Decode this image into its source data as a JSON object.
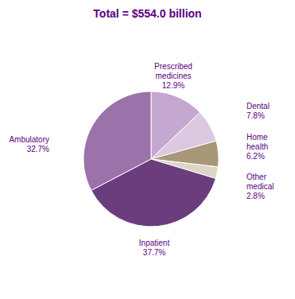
{
  "chart_data": {
    "type": "pie",
    "title": "Total = $554.0 billion",
    "categories": [
      "Prescribed\nmedicines",
      "Dental",
      "Home\nhealth",
      "Other\nmedical",
      "Inpatient",
      "Ambulatory"
    ],
    "values": [
      12.9,
      7.8,
      6.2,
      2.8,
      37.7,
      32.7
    ],
    "value_labels": [
      "12.9%",
      "7.8%",
      "6.2%",
      "2.8%",
      "37.7%",
      "32.7%"
    ],
    "data_labels": true,
    "colors": [
      "#c4a8d0",
      "#dcc8e0",
      "#a89878",
      "#ddd5c8",
      "#6b3d7d",
      "#9b72aa"
    ],
    "title_color": "#5b0080",
    "label_color": "#5b0080"
  }
}
